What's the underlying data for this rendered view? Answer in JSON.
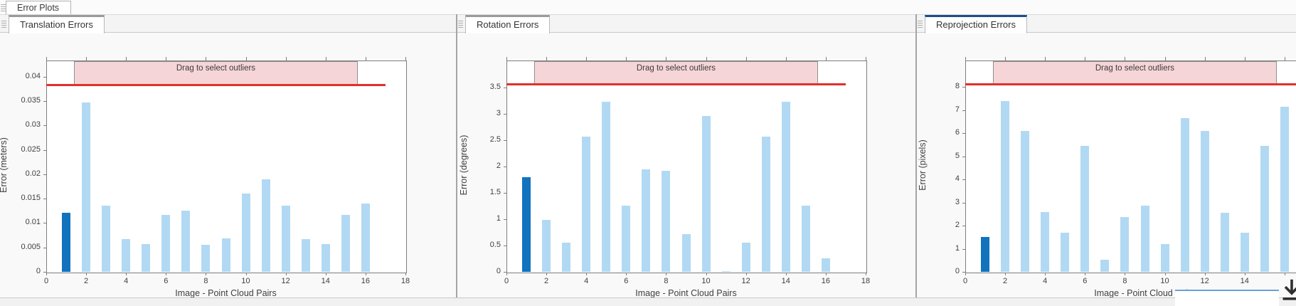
{
  "main_tab": {
    "label": "Error Plots"
  },
  "icons": {
    "main_drag_grip": "dock-grip (stacked lines)",
    "panel_drag_grip": "dock-grip (stacked lines)",
    "export_download": "arrow-down-to-line"
  },
  "bottom": {
    "export_tooltip": ""
  },
  "panels": [
    {
      "tab": {
        "label": "Translation Errors",
        "active": false
      },
      "chart_data": {
        "type": "bar",
        "title": "",
        "xlabel": "Image - Point Cloud Pairs",
        "ylabel": "Error (meters)",
        "x": [
          1,
          2,
          3,
          4,
          5,
          6,
          7,
          8,
          9,
          10,
          11,
          12,
          13,
          14,
          15,
          16
        ],
        "values": [
          0.0121,
          0.0347,
          0.0136,
          0.0067,
          0.0057,
          0.0117,
          0.0126,
          0.0056,
          0.0068,
          0.0161,
          0.0189,
          0.0136,
          0.0067,
          0.0057,
          0.0117,
          0.014
        ],
        "selected_bar_x": 1,
        "xlim": [
          0,
          18
        ],
        "ylim": [
          0,
          0.0433
        ],
        "xticks": [
          0,
          2,
          4,
          6,
          8,
          10,
          12,
          14,
          16,
          18
        ],
        "xtick_labels": [
          "0",
          "2",
          "4",
          "6",
          "8",
          "10",
          "12",
          "14",
          "16",
          "18"
        ],
        "ytick_values": [
          0,
          0.005,
          0.01,
          0.015,
          0.02,
          0.025,
          0.03,
          0.035,
          0.04
        ],
        "ytick_labels": [
          "0",
          "0.005",
          "0.01",
          "0.015",
          "0.02",
          "0.025",
          "0.03",
          "0.035",
          "0.04"
        ],
        "threshold_line": 0.0383,
        "threshold_x_extent": [
          0,
          17
        ],
        "band": {
          "label": "Drag to select outliers",
          "x_start": 1.4,
          "x_end": 15.6
        },
        "colors": {
          "bar": "#b2d9f3",
          "selected_bar": "#1173be",
          "threshold": "#e0312a",
          "band_fill": "#f6d5d8",
          "band_border": "#909090"
        },
        "grid": false,
        "legend": null
      }
    },
    {
      "tab": {
        "label": "Rotation Errors",
        "active": false
      },
      "chart_data": {
        "type": "bar",
        "title": "",
        "xlabel": "Image - Point Cloud Pairs",
        "ylabel": "Error (degrees)",
        "x": [
          1,
          2,
          3,
          4,
          5,
          6,
          7,
          8,
          9,
          10,
          11,
          12,
          13,
          14,
          15,
          16
        ],
        "values": [
          1.8,
          0.98,
          0.56,
          2.56,
          3.23,
          1.25,
          1.95,
          1.92,
          0.71,
          2.96,
          0.02,
          0.56,
          2.56,
          3.23,
          1.25,
          0.25
        ],
        "selected_bar_x": 1,
        "xlim": [
          0,
          18
        ],
        "ylim": [
          0,
          4.01
        ],
        "xticks": [
          0,
          2,
          4,
          6,
          8,
          10,
          12,
          14,
          16,
          18
        ],
        "xtick_labels": [
          "0",
          "2",
          "4",
          "6",
          "8",
          "10",
          "12",
          "14",
          "16",
          "18"
        ],
        "ytick_values": [
          0,
          0.5,
          1,
          1.5,
          2,
          2.5,
          3,
          3.5
        ],
        "ytick_labels": [
          "0",
          "0.5",
          "1",
          "1.5",
          "2",
          "2.5",
          "3",
          "3.5"
        ],
        "threshold_line": 3.57,
        "threshold_x_extent": [
          0,
          17
        ],
        "band": {
          "label": "Drag to select outliers",
          "x_start": 1.4,
          "x_end": 15.6
        },
        "colors": {
          "bar": "#b2d9f3",
          "selected_bar": "#1173be",
          "threshold": "#e0312a",
          "band_fill": "#f6d5d8",
          "band_border": "#909090"
        },
        "grid": false,
        "legend": null
      }
    },
    {
      "tab": {
        "label": "Reprojection Errors",
        "active": true
      },
      "chart_data": {
        "type": "bar",
        "title": "",
        "xlabel": "Image - Point Cloud Pairs",
        "ylabel": "Error (pixels)",
        "x": [
          1,
          2,
          3,
          4,
          5,
          6,
          7,
          8,
          9,
          10,
          11,
          12,
          13,
          14,
          15,
          16
        ],
        "values": [
          1.5,
          7.4,
          6.1,
          2.57,
          1.7,
          5.45,
          0.52,
          2.37,
          2.87,
          1.2,
          6.65,
          6.1,
          2.55,
          1.7,
          5.45,
          7.15
        ],
        "selected_bar_x": 1,
        "xlim": [
          0,
          18
        ],
        "ylim": [
          0,
          9.14
        ],
        "xticks": [
          0,
          2,
          4,
          6,
          8,
          10,
          12,
          14,
          16
        ],
        "xtick_labels": [
          "0",
          "2",
          "4",
          "6",
          "8",
          "10",
          "12",
          "14",
          ""
        ],
        "ytick_values": [
          0,
          1,
          2,
          3,
          4,
          5,
          6,
          7,
          8
        ],
        "ytick_labels": [
          "0",
          "1",
          "2",
          "3",
          "4",
          "5",
          "6",
          "7",
          "8"
        ],
        "threshold_line": 8.13,
        "threshold_x_extent": [
          0,
          17
        ],
        "band": {
          "label": "Drag to select outliers",
          "x_start": 1.4,
          "x_end": 15.6
        },
        "colors": {
          "bar": "#b2d9f3",
          "selected_bar": "#1173be",
          "threshold": "#e0312a",
          "band_fill": "#f6d5d8",
          "band_border": "#909090"
        },
        "grid": false,
        "legend": null
      }
    }
  ]
}
